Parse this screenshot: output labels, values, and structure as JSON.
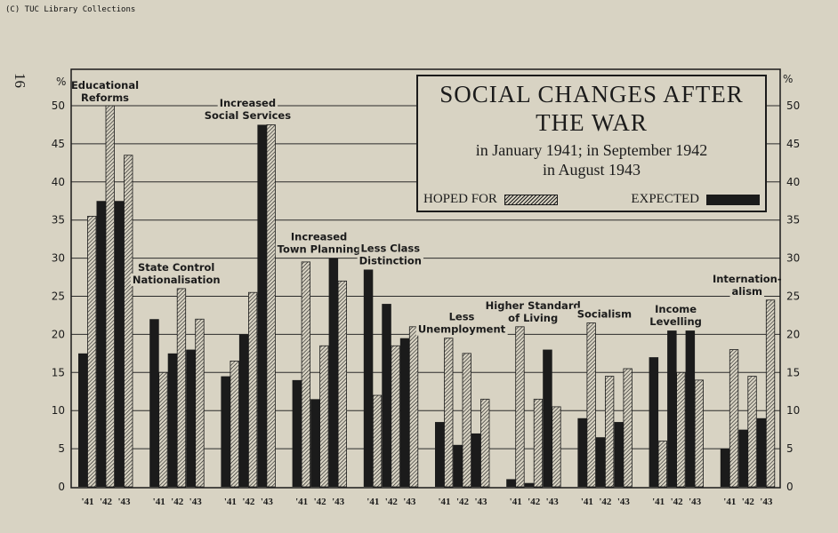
{
  "credit": "(C) TUC Library Collections",
  "page_number": "16",
  "chart_data": {
    "type": "bar",
    "title": "SOCIAL CHANGES AFTER THE WAR",
    "subtitle_line1": "in January 1941;   in September 1942",
    "subtitle_line2": "in August 1943",
    "ylabel": "%",
    "ylim": [
      0,
      50
    ],
    "yticks": [
      0,
      5,
      10,
      15,
      20,
      25,
      30,
      35,
      40,
      45,
      50
    ],
    "grid": true,
    "legend": {
      "position": "inside title box",
      "hoped_label": "HOPED FOR",
      "expected_label": "EXPECTED"
    },
    "years": [
      "'41",
      "'42",
      "'43"
    ],
    "colors": {
      "expected": "#1b1b1b",
      "hoped": "hatched",
      "background": "#d8d3c3"
    },
    "categories": [
      {
        "label": [
          "Educational",
          "Reforms"
        ],
        "expected": [
          17.5,
          37.5,
          37.5
        ],
        "hoped": [
          35.5,
          50,
          43.5
        ]
      },
      {
        "label": [
          "State Control",
          "Nationalisation"
        ],
        "expected": [
          22,
          17.5,
          18
        ],
        "hoped": [
          15,
          26,
          22
        ]
      },
      {
        "label": [
          "Increased",
          "Social Services"
        ],
        "expected": [
          14.5,
          20,
          47.5
        ],
        "hoped": [
          16.5,
          25.5,
          47.5
        ]
      },
      {
        "label": [
          "Increased",
          "Town Planning"
        ],
        "expected": [
          14,
          11.5,
          30
        ],
        "hoped": [
          29.5,
          18.5,
          27
        ]
      },
      {
        "label": [
          "Less Class",
          "Distinction"
        ],
        "expected": [
          28.5,
          24,
          19.5
        ],
        "hoped": [
          12,
          18.5,
          21
        ]
      },
      {
        "label": [
          "Less",
          "Unemployment"
        ],
        "expected": [
          8.5,
          5.5,
          7
        ],
        "hoped": [
          19.5,
          17.5,
          11.5
        ]
      },
      {
        "label": [
          "Higher Standard",
          "of Living"
        ],
        "expected": [
          1,
          0.5,
          18
        ],
        "hoped": [
          21,
          11.5,
          10.5
        ]
      },
      {
        "label": [
          "Socialism"
        ],
        "expected": [
          9,
          6.5,
          8.5
        ],
        "hoped": [
          21.5,
          14.5,
          15.5
        ]
      },
      {
        "label": [
          "Income",
          "Levelling"
        ],
        "expected": [
          17,
          20.5,
          20.5
        ],
        "hoped": [
          6,
          15,
          14
        ]
      },
      {
        "label": [
          "Internation-",
          "alism"
        ],
        "expected": [
          5,
          7.5,
          9
        ],
        "hoped": [
          18,
          14.5,
          24.5
        ]
      }
    ]
  }
}
